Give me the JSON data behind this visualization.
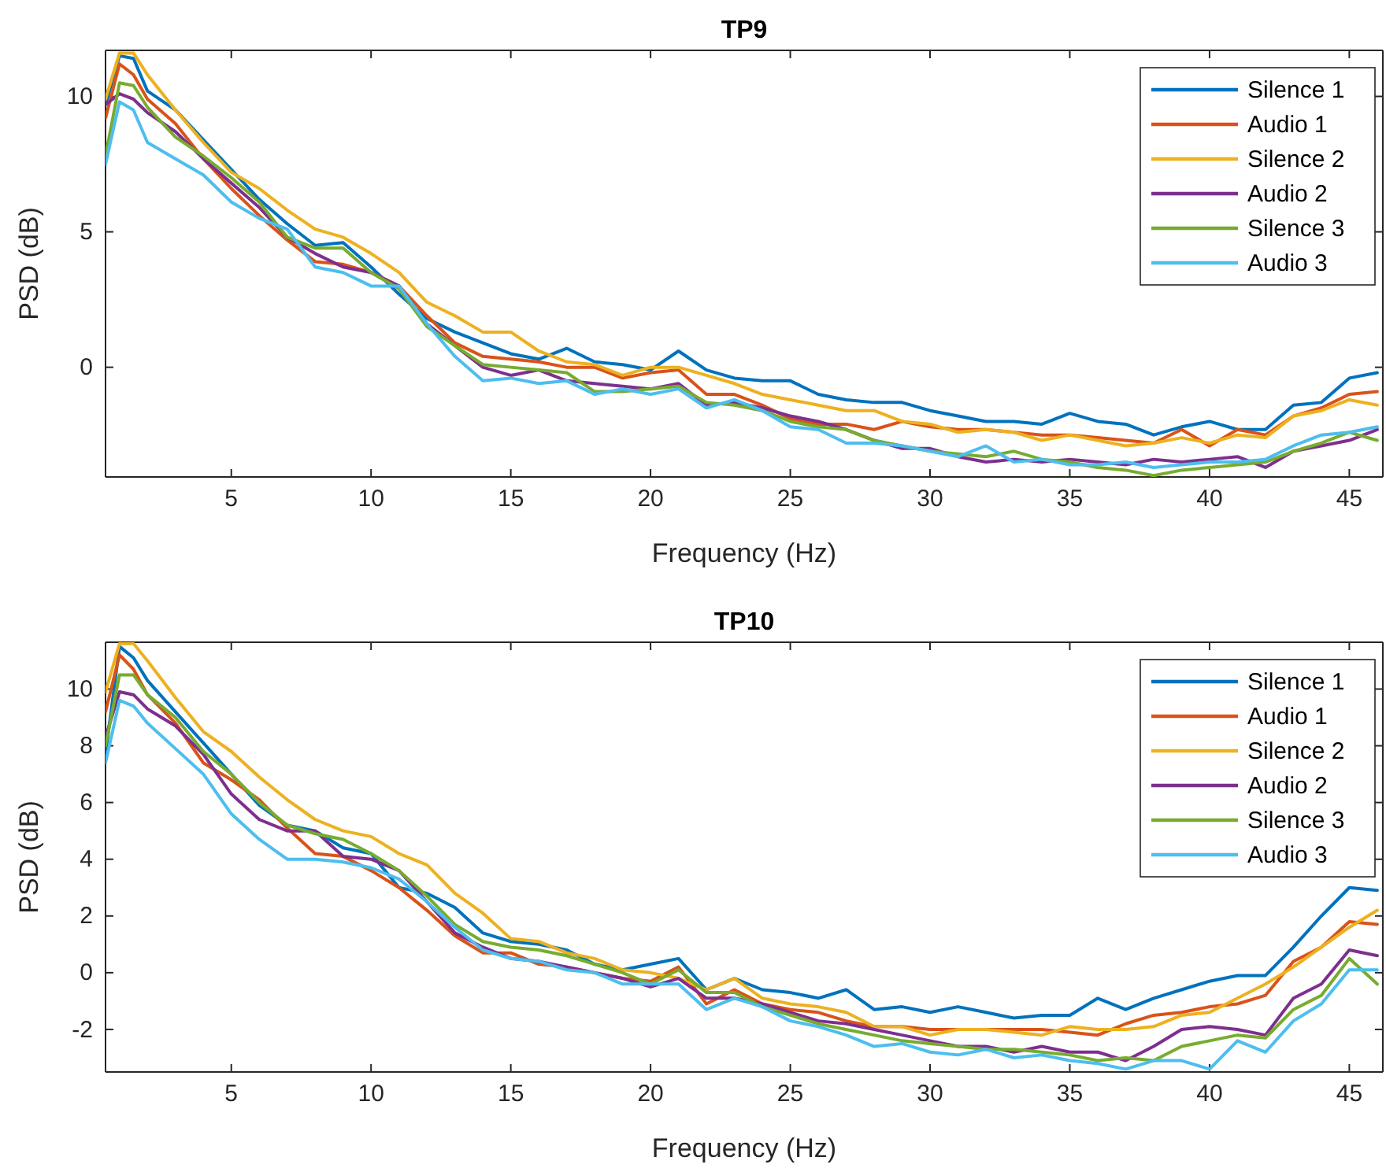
{
  "chart_data": [
    {
      "type": "line",
      "title": "TP9",
      "xlabel": "Frequency (Hz)",
      "ylabel": "PSD (dB)",
      "xlim": [
        0.5,
        46.2
      ],
      "ylim": [
        -4.05,
        11.7
      ],
      "xticks": [
        5,
        10,
        15,
        20,
        25,
        30,
        35,
        40,
        45
      ],
      "yticks": [
        0,
        5,
        10
      ],
      "grid": false,
      "legend": "top right",
      "line_style": "solid",
      "x": [
        0.5,
        1,
        1.5,
        2,
        3,
        4,
        5,
        6,
        7,
        8,
        9,
        10,
        11,
        12,
        13,
        14,
        15,
        16,
        17,
        18,
        19,
        20,
        21,
        22,
        23,
        24,
        25,
        26,
        27,
        28,
        29,
        30,
        31,
        32,
        33,
        34,
        35,
        36,
        37,
        38,
        39,
        40,
        41,
        42,
        43,
        44,
        45,
        46
      ],
      "series": [
        {
          "name": "Silence 1",
          "color": "#0072bd",
          "values": [
            9.7,
            11.5,
            11.4,
            10.2,
            9.5,
            8.4,
            7.3,
            6.2,
            5.3,
            4.5,
            4.6,
            3.7,
            2.7,
            1.8,
            1.3,
            0.9,
            0.5,
            0.3,
            0.7,
            0.2,
            0.1,
            -0.1,
            0.6,
            -0.1,
            -0.4,
            -0.5,
            -0.5,
            -1.0,
            -1.2,
            -1.3,
            -1.3,
            -1.6,
            -1.8,
            -2.0,
            -2.0,
            -2.1,
            -1.7,
            -2.0,
            -2.1,
            -2.5,
            -2.2,
            -2.0,
            -2.3,
            -2.3,
            -1.4,
            -1.3,
            -0.4,
            -0.2
          ]
        },
        {
          "name": "Audio 1",
          "color": "#d95319",
          "values": [
            9.2,
            11.2,
            10.8,
            9.9,
            9.0,
            7.7,
            6.6,
            5.6,
            4.7,
            3.9,
            3.8,
            3.5,
            3.0,
            1.9,
            0.9,
            0.4,
            0.3,
            0.2,
            0.0,
            0.0,
            -0.4,
            -0.2,
            -0.1,
            -1.0,
            -1.0,
            -1.4,
            -1.9,
            -2.1,
            -2.1,
            -2.3,
            -2.0,
            -2.2,
            -2.3,
            -2.3,
            -2.4,
            -2.5,
            -2.5,
            -2.6,
            -2.7,
            -2.8,
            -2.3,
            -2.9,
            -2.3,
            -2.5,
            -1.8,
            -1.5,
            -1.0,
            -0.9
          ]
        },
        {
          "name": "Silence 2",
          "color": "#edb120",
          "values": [
            9.9,
            11.6,
            11.6,
            10.8,
            9.5,
            8.3,
            7.2,
            6.6,
            5.8,
            5.1,
            4.8,
            4.2,
            3.5,
            2.4,
            1.9,
            1.3,
            1.3,
            0.6,
            0.2,
            0.1,
            -0.3,
            0.0,
            0.0,
            -0.3,
            -0.6,
            -1.0,
            -1.2,
            -1.4,
            -1.6,
            -1.6,
            -2.0,
            -2.1,
            -2.4,
            -2.3,
            -2.4,
            -2.7,
            -2.5,
            -2.7,
            -2.9,
            -2.8,
            -2.6,
            -2.8,
            -2.5,
            -2.6,
            -1.8,
            -1.6,
            -1.2,
            -1.4
          ]
        },
        {
          "name": "Audio 2",
          "color": "#7e2f8e",
          "values": [
            9.7,
            10.1,
            9.9,
            9.4,
            8.7,
            7.7,
            6.8,
            5.9,
            4.8,
            4.2,
            3.7,
            3.5,
            3.0,
            1.6,
            0.8,
            0.0,
            -0.3,
            -0.1,
            -0.5,
            -0.6,
            -0.7,
            -0.8,
            -0.6,
            -1.4,
            -1.3,
            -1.5,
            -1.8,
            -2.0,
            -2.3,
            -2.7,
            -3.0,
            -3.0,
            -3.3,
            -3.5,
            -3.4,
            -3.5,
            -3.4,
            -3.5,
            -3.6,
            -3.4,
            -3.5,
            -3.4,
            -3.3,
            -3.7,
            -3.1,
            -2.9,
            -2.7,
            -2.3
          ]
        },
        {
          "name": "Silence 3",
          "color": "#77ac30",
          "values": [
            7.8,
            10.5,
            10.4,
            9.6,
            8.5,
            7.8,
            7.0,
            6.1,
            4.8,
            4.4,
            4.4,
            3.5,
            2.9,
            1.5,
            0.8,
            0.1,
            0.0,
            -0.1,
            -0.2,
            -0.9,
            -0.9,
            -0.8,
            -0.7,
            -1.3,
            -1.4,
            -1.6,
            -2.0,
            -2.2,
            -2.3,
            -2.7,
            -2.9,
            -3.1,
            -3.2,
            -3.3,
            -3.1,
            -3.4,
            -3.5,
            -3.7,
            -3.8,
            -4.0,
            -3.8,
            -3.7,
            -3.6,
            -3.5,
            -3.1,
            -2.8,
            -2.4,
            -2.7
          ]
        },
        {
          "name": "Audio 3",
          "color": "#4dbeee",
          "values": [
            7.5,
            9.8,
            9.5,
            8.3,
            7.7,
            7.1,
            6.1,
            5.5,
            5.1,
            3.7,
            3.5,
            3.0,
            3.0,
            1.6,
            0.4,
            -0.5,
            -0.4,
            -0.6,
            -0.5,
            -1.0,
            -0.8,
            -1.0,
            -0.8,
            -1.5,
            -1.2,
            -1.6,
            -2.2,
            -2.3,
            -2.8,
            -2.8,
            -2.9,
            -3.1,
            -3.3,
            -2.9,
            -3.5,
            -3.4,
            -3.6,
            -3.6,
            -3.5,
            -3.7,
            -3.6,
            -3.5,
            -3.5,
            -3.4,
            -2.9,
            -2.5,
            -2.4,
            -2.2
          ]
        }
      ]
    },
    {
      "type": "line",
      "title": "TP10",
      "xlabel": "Frequency (Hz)",
      "ylabel": "PSD (dB)",
      "xlim": [
        0.5,
        46.2
      ],
      "ylim": [
        -3.5,
        11.65
      ],
      "xticks": [
        5,
        10,
        15,
        20,
        25,
        30,
        35,
        40,
        45
      ],
      "yticks": [
        -2,
        0,
        2,
        4,
        6,
        8,
        10
      ],
      "grid": false,
      "legend": "top right",
      "line_style": "solid",
      "x": [
        0.5,
        1,
        1.5,
        2,
        3,
        4,
        5,
        6,
        7,
        8,
        9,
        10,
        11,
        12,
        13,
        14,
        15,
        16,
        17,
        18,
        19,
        20,
        21,
        22,
        23,
        24,
        25,
        26,
        27,
        28,
        29,
        30,
        31,
        32,
        33,
        34,
        35,
        36,
        37,
        38,
        39,
        40,
        41,
        42,
        43,
        44,
        45,
        46
      ],
      "series": [
        {
          "name": "Silence 1",
          "color": "#0072bd",
          "values": [
            7.7,
            11.5,
            11.1,
            10.3,
            9.2,
            8.1,
            7.0,
            5.9,
            5.2,
            5.0,
            4.4,
            4.2,
            3.0,
            2.8,
            2.3,
            1.4,
            1.1,
            1.0,
            0.8,
            0.3,
            0.1,
            0.3,
            0.5,
            -0.6,
            -0.2,
            -0.6,
            -0.7,
            -0.9,
            -0.6,
            -1.3,
            -1.2,
            -1.4,
            -1.2,
            -1.4,
            -1.6,
            -1.5,
            -1.5,
            -0.9,
            -1.3,
            -0.9,
            -0.6,
            -0.3,
            -0.1,
            -0.1,
            0.9,
            2.0,
            3.0,
            2.9
          ]
        },
        {
          "name": "Audio 1",
          "color": "#d95319",
          "values": [
            9.2,
            11.2,
            10.7,
            9.8,
            8.8,
            7.4,
            6.8,
            6.1,
            5.1,
            4.2,
            4.1,
            3.6,
            3.0,
            2.2,
            1.3,
            0.7,
            0.7,
            0.3,
            0.2,
            0.0,
            -0.2,
            -0.3,
            0.2,
            -1.1,
            -0.6,
            -1.1,
            -1.3,
            -1.4,
            -1.7,
            -1.9,
            -1.9,
            -2.0,
            -2.0,
            -2.0,
            -2.0,
            -2.0,
            -2.1,
            -2.2,
            -1.8,
            -1.5,
            -1.4,
            -1.2,
            -1.1,
            -0.8,
            0.4,
            0.9,
            1.8,
            1.7
          ]
        },
        {
          "name": "Silence 2",
          "color": "#edb120",
          "values": [
            9.9,
            11.6,
            11.6,
            11.0,
            9.7,
            8.5,
            7.8,
            6.9,
            6.1,
            5.4,
            5.0,
            4.8,
            4.2,
            3.8,
            2.8,
            2.1,
            1.2,
            1.1,
            0.7,
            0.5,
            0.1,
            0.0,
            -0.2,
            -0.6,
            -0.2,
            -0.9,
            -1.1,
            -1.2,
            -1.4,
            -1.9,
            -1.9,
            -2.2,
            -2.0,
            -2.0,
            -2.1,
            -2.2,
            -1.9,
            -2.0,
            -2.0,
            -1.9,
            -1.5,
            -1.4,
            -0.9,
            -0.4,
            0.2,
            0.9,
            1.6,
            2.2
          ]
        },
        {
          "name": "Audio 2",
          "color": "#7e2f8e",
          "values": [
            8.3,
            9.9,
            9.8,
            9.3,
            8.7,
            7.7,
            6.3,
            5.4,
            5.0,
            5.0,
            4.1,
            4.0,
            3.6,
            2.5,
            1.4,
            0.9,
            0.5,
            0.4,
            0.2,
            0.0,
            -0.2,
            -0.5,
            -0.2,
            -0.9,
            -0.9,
            -1.1,
            -1.4,
            -1.7,
            -1.8,
            -2.0,
            -2.2,
            -2.4,
            -2.6,
            -2.6,
            -2.8,
            -2.6,
            -2.8,
            -2.8,
            -3.1,
            -2.6,
            -2.0,
            -1.9,
            -2.0,
            -2.2,
            -0.9,
            -0.4,
            0.8,
            0.6
          ]
        },
        {
          "name": "Silence 3",
          "color": "#77ac30",
          "values": [
            8.0,
            10.5,
            10.5,
            9.8,
            9.0,
            7.8,
            7.0,
            6.0,
            5.2,
            4.9,
            4.7,
            4.2,
            3.6,
            2.7,
            1.7,
            1.1,
            0.9,
            0.8,
            0.6,
            0.3,
            0.0,
            -0.4,
            0.1,
            -0.7,
            -0.7,
            -1.2,
            -1.5,
            -1.8,
            -2.0,
            -2.2,
            -2.4,
            -2.5,
            -2.6,
            -2.7,
            -2.7,
            -2.8,
            -2.9,
            -3.1,
            -3.0,
            -3.1,
            -2.6,
            -2.4,
            -2.2,
            -2.3,
            -1.3,
            -0.8,
            0.5,
            -0.4
          ]
        },
        {
          "name": "Audio 3",
          "color": "#4dbeee",
          "values": [
            7.4,
            9.6,
            9.4,
            8.8,
            7.9,
            7.0,
            5.6,
            4.7,
            4.0,
            4.0,
            3.9,
            3.7,
            3.3,
            2.5,
            1.6,
            0.8,
            0.5,
            0.4,
            0.1,
            0.0,
            -0.4,
            -0.4,
            -0.4,
            -1.3,
            -0.9,
            -1.2,
            -1.7,
            -1.9,
            -2.2,
            -2.6,
            -2.5,
            -2.8,
            -2.9,
            -2.7,
            -3.0,
            -2.9,
            -3.1,
            -3.2,
            -3.4,
            -3.1,
            -3.1,
            -3.4,
            -2.4,
            -2.8,
            -1.7,
            -1.1,
            0.1,
            0.1
          ]
        }
      ]
    }
  ]
}
